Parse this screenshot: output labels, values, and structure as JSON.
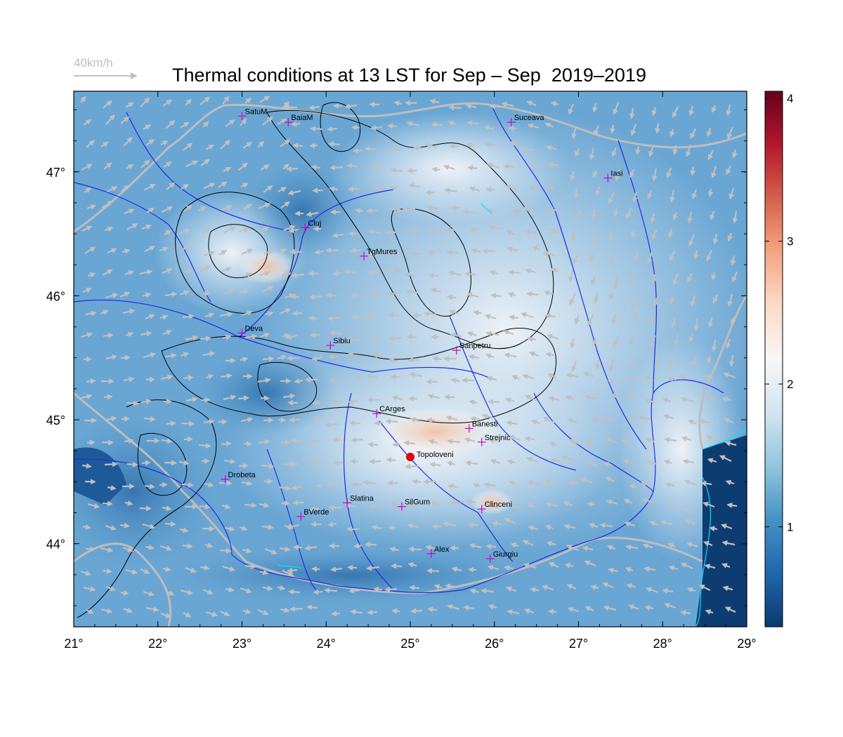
{
  "title": "Thermal conditions at 13 LST for Sep – Sep  2019–2019",
  "wind_legend": {
    "label": "40km/h"
  },
  "map": {
    "lon_range": [
      21,
      29
    ],
    "lat_range": [
      43.33,
      47.65
    ],
    "x_ticks": [
      {
        "v": 21,
        "label": "21°"
      },
      {
        "v": 22,
        "label": "22°"
      },
      {
        "v": 23,
        "label": "23°"
      },
      {
        "v": 24,
        "label": "24°"
      },
      {
        "v": 25,
        "label": "25°"
      },
      {
        "v": 26,
        "label": "26°"
      },
      {
        "v": 27,
        "label": "27°"
      },
      {
        "v": 28,
        "label": "28°"
      },
      {
        "v": 29,
        "label": "29°"
      }
    ],
    "y_ticks": [
      {
        "v": 44,
        "label": "44°"
      },
      {
        "v": 45,
        "label": "45°"
      },
      {
        "v": 46,
        "label": "46°"
      },
      {
        "v": 47,
        "label": "47°"
      }
    ],
    "stations": [
      {
        "name": "SatuM",
        "lon": 23.0,
        "lat": 47.45
      },
      {
        "name": "BaiaM",
        "lon": 23.55,
        "lat": 47.4
      },
      {
        "name": "Suceava",
        "lon": 26.2,
        "lat": 47.4
      },
      {
        "name": "Iasi",
        "lon": 27.35,
        "lat": 46.95
      },
      {
        "name": "Cluj",
        "lon": 23.75,
        "lat": 46.55
      },
      {
        "name": "TgMures",
        "lon": 24.45,
        "lat": 46.32
      },
      {
        "name": "Deva",
        "lon": 23.0,
        "lat": 45.7
      },
      {
        "name": "Sibiu",
        "lon": 24.05,
        "lat": 45.6
      },
      {
        "name": "Sanpetru",
        "lon": 25.55,
        "lat": 45.56
      },
      {
        "name": "CArges",
        "lon": 24.6,
        "lat": 45.05
      },
      {
        "name": "Banesti",
        "lon": 25.7,
        "lat": 44.93
      },
      {
        "name": "Strejnic",
        "lon": 25.85,
        "lat": 44.82
      },
      {
        "name": "Drobeta",
        "lon": 22.8,
        "lat": 44.52
      },
      {
        "name": "Slatina",
        "lon": 24.25,
        "lat": 44.33
      },
      {
        "name": "SilGum",
        "lon": 24.9,
        "lat": 44.3
      },
      {
        "name": "Clinceni",
        "lon": 25.85,
        "lat": 44.28
      },
      {
        "name": "BVerde",
        "lon": 23.7,
        "lat": 44.22
      },
      {
        "name": "Alex",
        "lon": 25.25,
        "lat": 43.92
      },
      {
        "name": "Giurgiu",
        "lon": 25.95,
        "lat": 43.88
      }
    ],
    "highlight_station": {
      "name": "Topoloveni",
      "lon": 25.0,
      "lat": 44.7
    }
  },
  "colorbar": {
    "range": [
      0.3,
      4.05
    ],
    "ticks": [
      {
        "v": 1,
        "label": "1"
      },
      {
        "v": 2,
        "label": "2"
      },
      {
        "v": 3,
        "label": "3"
      },
      {
        "v": 4,
        "label": "4"
      }
    ],
    "stops": [
      "#0b3a6e",
      "#2166ac",
      "#4393c3",
      "#92c5de",
      "#d1e5f0",
      "#f7f7f7",
      "#fddbc7",
      "#f4a582",
      "#d6604d",
      "#b2182b",
      "#67001f"
    ]
  },
  "colors": {
    "rivers": "#1e2be6",
    "borders": "#bdbdbd",
    "contours": "#000000",
    "stations": "#cc00cc",
    "highlight": "#e00000",
    "coast": "#00e5ff"
  }
}
